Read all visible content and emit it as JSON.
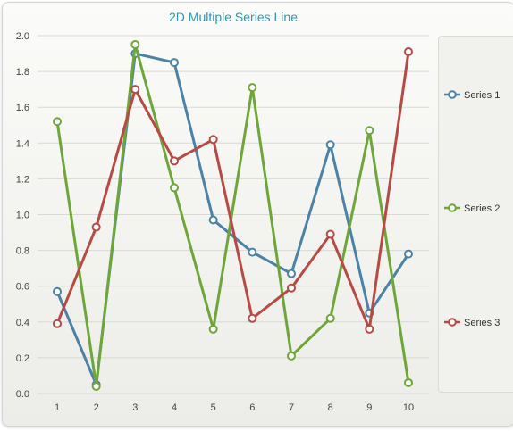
{
  "chart_data": {
    "type": "line",
    "title": "2D Multiple Series Line",
    "xlabel": "",
    "ylabel": "",
    "x": [
      1,
      2,
      3,
      4,
      5,
      6,
      7,
      8,
      9,
      10
    ],
    "ylim": [
      0,
      2
    ],
    "yticks": [
      "0.0",
      "0.2",
      "0.4",
      "0.6",
      "0.8",
      "1.0",
      "1.2",
      "1.4",
      "1.6",
      "1.8",
      "2.0"
    ],
    "xticks": [
      "1",
      "2",
      "3",
      "4",
      "5",
      "6",
      "7",
      "8",
      "9",
      "10"
    ],
    "grid": true,
    "legend": "right",
    "series": [
      {
        "name": "Series 1",
        "color": "#4a82a8",
        "values": [
          0.57,
          0.05,
          1.9,
          1.85,
          0.97,
          0.79,
          0.67,
          1.39,
          0.45,
          0.78
        ]
      },
      {
        "name": "Series 2",
        "color": "#6ea63a",
        "values": [
          1.52,
          0.04,
          1.95,
          1.15,
          0.36,
          1.71,
          0.21,
          0.42,
          1.47,
          0.06
        ]
      },
      {
        "name": "Series 3",
        "color": "#b84a44",
        "values": [
          0.39,
          0.93,
          1.7,
          1.3,
          1.42,
          0.42,
          0.59,
          0.89,
          0.36,
          1.91
        ]
      }
    ]
  }
}
